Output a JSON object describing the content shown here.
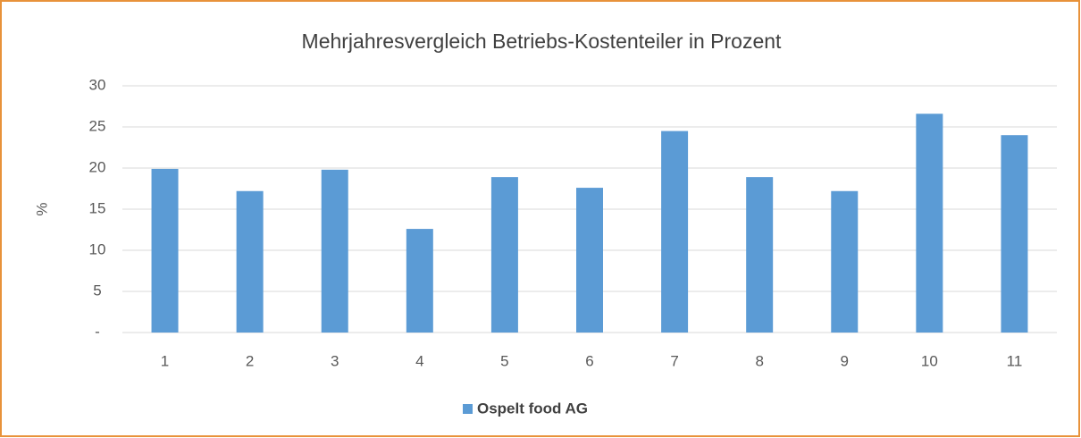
{
  "chart_data": {
    "type": "bar",
    "title": "Mehrjahresvergleich Betriebs-Kostenteiler in Prozent",
    "y_label": "%",
    "categories": [
      "1",
      "2",
      "3",
      "4",
      "5",
      "6",
      "7",
      "8",
      "9",
      "10",
      "11"
    ],
    "series": [
      {
        "name": "Ospelt food AG",
        "color": "#5b9bd5",
        "values": [
          19.9,
          17.2,
          19.8,
          12.6,
          18.9,
          17.6,
          24.5,
          18.9,
          17.2,
          26.6,
          24.0
        ]
      }
    ],
    "ylim": [
      0,
      30
    ],
    "yticks": [
      {
        "value": 0,
        "label": "-"
      },
      5,
      10,
      15,
      20,
      25,
      30
    ],
    "grid": true,
    "legend": "bottom"
  }
}
